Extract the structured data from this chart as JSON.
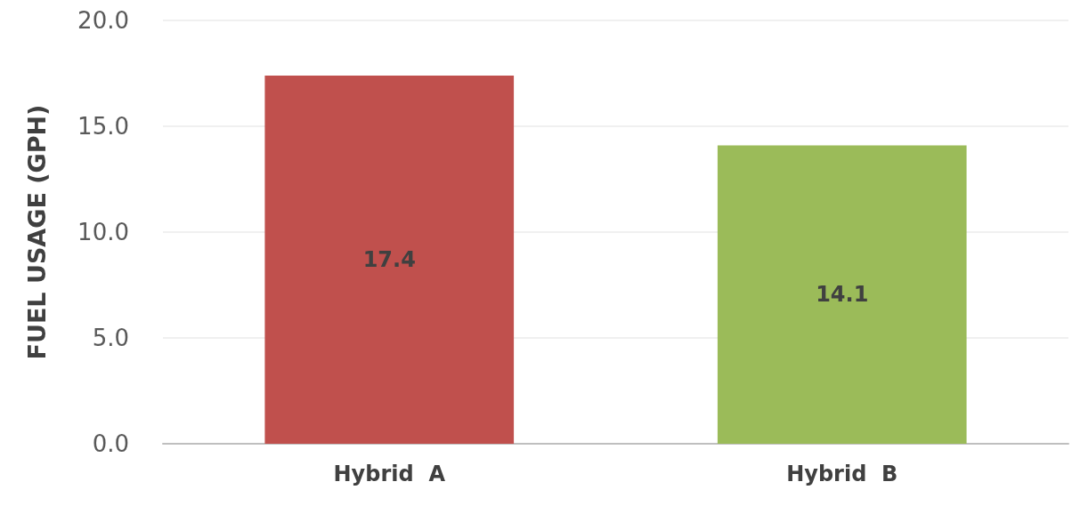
{
  "chart_data": {
    "type": "bar",
    "ylabel": "FUEL USAGE (GPH)",
    "categories": [
      "Hybrid  A",
      "Hybrid  B"
    ],
    "values": [
      17.4,
      14.1
    ],
    "colors": [
      "#c0504d",
      "#9bbb59"
    ],
    "ylim": [
      0,
      20
    ],
    "yticks": [
      {
        "value": 0,
        "label": "0.0"
      },
      {
        "value": 5,
        "label": "5.0"
      },
      {
        "value": 10,
        "label": "10.0"
      },
      {
        "value": 15,
        "label": "15.0"
      },
      {
        "value": 20,
        "label": "20.0"
      }
    ],
    "grid": "y",
    "data_labels": true
  }
}
